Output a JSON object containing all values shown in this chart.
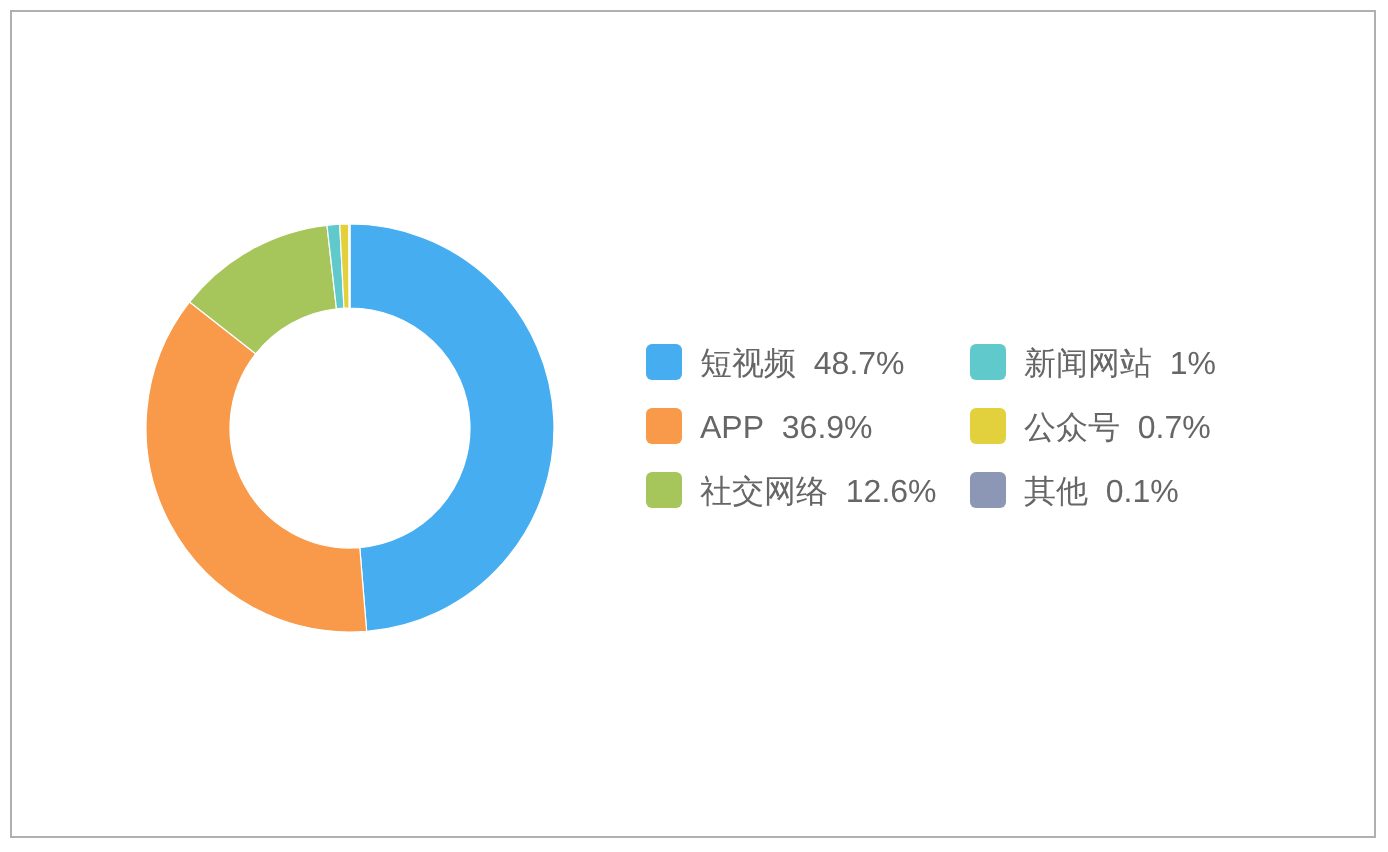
{
  "chart_data": {
    "type": "donut",
    "categories": [
      "短视频",
      "APP",
      "社交网络",
      "新闻网站",
      "公众号",
      "其他"
    ],
    "values": [
      48.7,
      36.9,
      12.6,
      1,
      0.7,
      0.1
    ],
    "colors": [
      "#45adf0",
      "#f89a4a",
      "#a6c65b",
      "#5fc9cb",
      "#e3d03d",
      "#8c97b5"
    ],
    "value_labels": [
      "48.7%",
      "36.9%",
      "12.6%",
      "1%",
      "0.7%",
      "0.1%"
    ],
    "legend": "right"
  }
}
